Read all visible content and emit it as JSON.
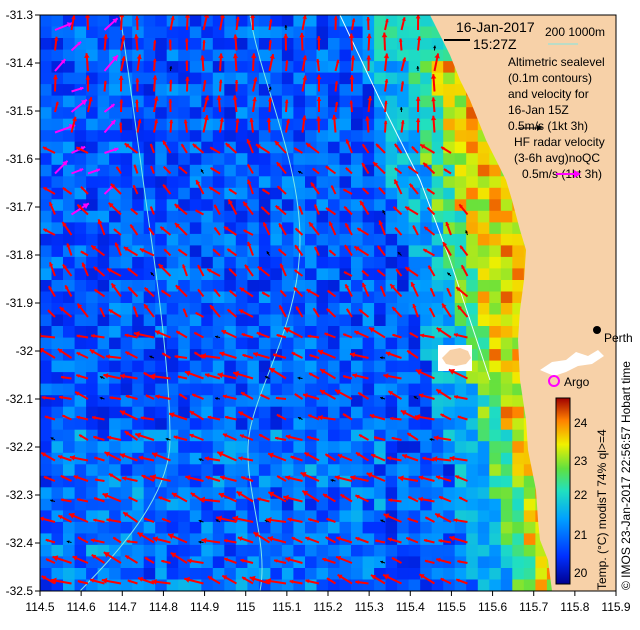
{
  "map": {
    "date": "16-Jan-2017",
    "time": "15:27Z",
    "depth_contours": "200  1000m",
    "altimetry_lines": [
      "Altimetric sealevel",
      "(0.1m contours)",
      "and velocity for",
      "16-Jan 15Z",
      "0.5m/s (1kt 3h)"
    ],
    "hf_radar_lines": [
      "HF radar velocity",
      "(3-6h avg)noQC",
      "0.5m/s (1kt 3h)"
    ],
    "places": {
      "city": "Perth",
      "float": "Argo"
    },
    "credit": "© IMOS 23-Jan-2017 22:56:57 Hobart time",
    "colorbar_title": "Temp. (°C) modisT 74% ql>=4",
    "colorbar_ticks": [
      "24",
      "23",
      "22",
      "21",
      "20"
    ],
    "x_ticks": [
      "114.5",
      "114.6",
      "114.7",
      "114.8",
      "114.9",
      "115",
      "115.1",
      "115.2",
      "115.3",
      "115.4",
      "115.5",
      "115.6",
      "115.7",
      "115.8",
      "115.9"
    ],
    "y_ticks": [
      "-31.3",
      "-31.4",
      "-31.5",
      "-31.6",
      "-31.7",
      "-31.8",
      "-31.9",
      "-32",
      "-32.1",
      "-32.2",
      "-32.3",
      "-32.4",
      "-32.5"
    ],
    "colors": {
      "land": "#f7d1a8",
      "altimetry_arrow": "#000000",
      "hf_radar_arrow": "#ff00ff",
      "current_arrow": "#ff0000",
      "contour": "#7fe6e6",
      "argo": "#ff00ff"
    },
    "icons": [
      "perth-marker-icon",
      "argo-float-icon"
    ]
  }
}
